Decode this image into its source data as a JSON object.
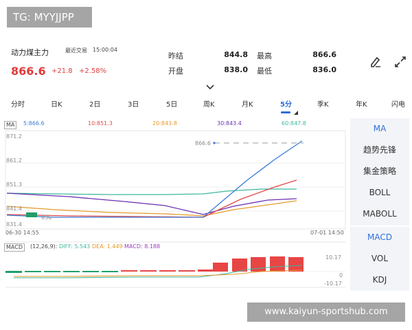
{
  "tg_badge": "TG: MYYJJPP",
  "header": {
    "stock_name": "动力煤主力",
    "last_trade_label": "最近交易",
    "last_trade_time": "15:00:04",
    "price": "866.6",
    "change": "+21.8",
    "change_pct": "+2.58%"
  },
  "quote": {
    "prev_close_label": "昨结",
    "prev_close": "844.8",
    "high_label": "最高",
    "high": "866.6",
    "open_label": "开盘",
    "open": "838.0",
    "low_label": "最低",
    "low": "836.0"
  },
  "icons": {
    "draw": "pen-draw-icon",
    "expand": "expand-arrows-icon",
    "collapse": "chevron-down-icon",
    "period_menu": "triangle-dropdown-icon"
  },
  "period_tabs": [
    "分时",
    "日K",
    "2日",
    "3日",
    "5日",
    "周K",
    "月K",
    "5分",
    "季K",
    "年K",
    "闪电"
  ],
  "active_period": "5分",
  "ma_legend": {
    "badge": "MA",
    "items": [
      {
        "text": "5:866.6",
        "color": "#3a7bd5"
      },
      {
        "text": "10:851.3",
        "color": "#e04848"
      },
      {
        "text": "20:843.8",
        "color": "#e59a2a"
      },
      {
        "text": "30:843.4",
        "color": "#6a2fb0"
      },
      {
        "text": "60:847.8",
        "color": "#3fb89d"
      }
    ]
  },
  "price_axis": {
    "labels": [
      "871.2",
      "861.2",
      "851.3",
      "841.4",
      "831.4"
    ],
    "current_marker": "866.6",
    "time_start": "06-30 14:55",
    "time_end": "07-01 14:50",
    "low_marker": "836"
  },
  "macd": {
    "badge": "MACD",
    "params": "(12,26,9):",
    "diff": "DIFF: 5.543",
    "dea": "DEA: 1.449",
    "macd": "MACD: 8.188",
    "axis_top": "10.17",
    "axis_mid": "0",
    "axis_bottom": "-10.17",
    "colors": {
      "diff": "#3fb89d",
      "dea": "#e59a2a",
      "macd": "#9b3fbf",
      "up": "#e84545",
      "down": "#1f9e6a"
    }
  },
  "side_panel": {
    "group1": [
      "MA",
      "趋势先锋",
      "集金策略",
      "BOLL",
      "MABOLL"
    ],
    "group1_active": "MA",
    "group2": [
      "MACD",
      "VOL",
      "KDJ"
    ],
    "group2_active": "MACD"
  },
  "watermark": "www.kaiyun-sportshub.com"
}
